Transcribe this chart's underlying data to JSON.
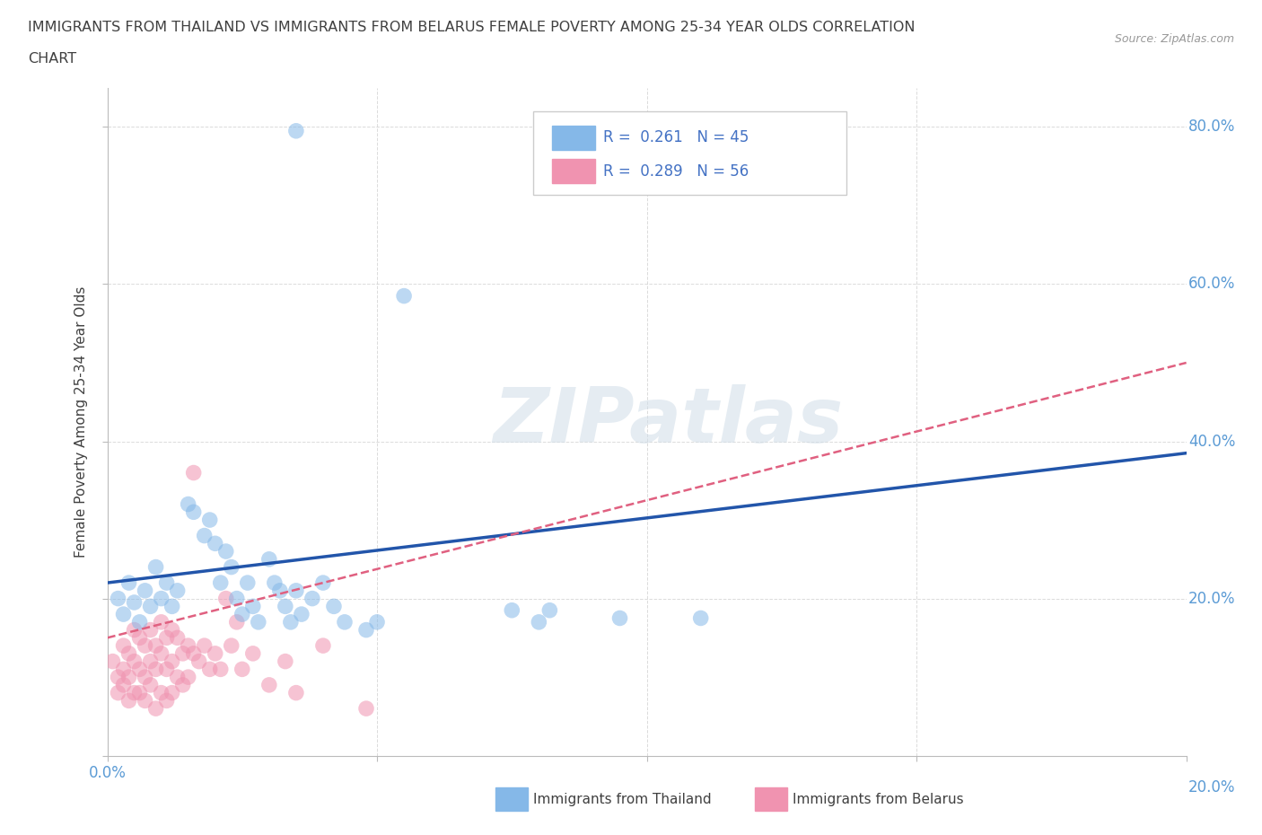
{
  "title_line1": "IMMIGRANTS FROM THAILAND VS IMMIGRANTS FROM BELARUS FEMALE POVERTY AMONG 25-34 YEAR OLDS CORRELATION",
  "title_line2": "CHART",
  "source": "Source: ZipAtlas.com",
  "ylabel": "Female Poverty Among 25-34 Year Olds",
  "xlim": [
    0.0,
    0.2
  ],
  "ylim": [
    0.0,
    0.85
  ],
  "watermark": "ZIPatlas",
  "thailand_color": "#85b8e8",
  "belarus_color": "#f093b0",
  "title_color": "#404040",
  "source_color": "#999999",
  "tick_label_color": "#5b9bd5",
  "trend_thailand_color": "#2255aa",
  "trend_belarus_color": "#e06080",
  "grid_color": "#cccccc",
  "background_color": "#ffffff",
  "trend_thailand_y0": 0.22,
  "trend_thailand_y1": 0.385,
  "trend_belarus_y0": 0.15,
  "trend_belarus_y1": 0.5,
  "thailand_scatter": [
    [
      0.002,
      0.2
    ],
    [
      0.003,
      0.18
    ],
    [
      0.004,
      0.22
    ],
    [
      0.005,
      0.195
    ],
    [
      0.006,
      0.17
    ],
    [
      0.007,
      0.21
    ],
    [
      0.008,
      0.19
    ],
    [
      0.009,
      0.24
    ],
    [
      0.01,
      0.2
    ],
    [
      0.011,
      0.22
    ],
    [
      0.012,
      0.19
    ],
    [
      0.013,
      0.21
    ],
    [
      0.015,
      0.32
    ],
    [
      0.016,
      0.31
    ],
    [
      0.018,
      0.28
    ],
    [
      0.019,
      0.3
    ],
    [
      0.02,
      0.27
    ],
    [
      0.021,
      0.22
    ],
    [
      0.022,
      0.26
    ],
    [
      0.023,
      0.24
    ],
    [
      0.024,
      0.2
    ],
    [
      0.025,
      0.18
    ],
    [
      0.026,
      0.22
    ],
    [
      0.027,
      0.19
    ],
    [
      0.028,
      0.17
    ],
    [
      0.03,
      0.25
    ],
    [
      0.031,
      0.22
    ],
    [
      0.032,
      0.21
    ],
    [
      0.033,
      0.19
    ],
    [
      0.034,
      0.17
    ],
    [
      0.035,
      0.21
    ],
    [
      0.036,
      0.18
    ],
    [
      0.038,
      0.2
    ],
    [
      0.04,
      0.22
    ],
    [
      0.042,
      0.19
    ],
    [
      0.044,
      0.17
    ],
    [
      0.048,
      0.16
    ],
    [
      0.05,
      0.17
    ],
    [
      0.055,
      0.585
    ],
    [
      0.075,
      0.185
    ],
    [
      0.08,
      0.17
    ],
    [
      0.082,
      0.185
    ],
    [
      0.095,
      0.175
    ],
    [
      0.11,
      0.175
    ],
    [
      0.035,
      0.795
    ]
  ],
  "belarus_scatter": [
    [
      0.001,
      0.12
    ],
    [
      0.002,
      0.1
    ],
    [
      0.002,
      0.08
    ],
    [
      0.003,
      0.14
    ],
    [
      0.003,
      0.11
    ],
    [
      0.003,
      0.09
    ],
    [
      0.004,
      0.13
    ],
    [
      0.004,
      0.1
    ],
    [
      0.004,
      0.07
    ],
    [
      0.005,
      0.16
    ],
    [
      0.005,
      0.12
    ],
    [
      0.005,
      0.08
    ],
    [
      0.006,
      0.15
    ],
    [
      0.006,
      0.11
    ],
    [
      0.006,
      0.08
    ],
    [
      0.007,
      0.14
    ],
    [
      0.007,
      0.1
    ],
    [
      0.007,
      0.07
    ],
    [
      0.008,
      0.16
    ],
    [
      0.008,
      0.12
    ],
    [
      0.008,
      0.09
    ],
    [
      0.009,
      0.14
    ],
    [
      0.009,
      0.11
    ],
    [
      0.009,
      0.06
    ],
    [
      0.01,
      0.17
    ],
    [
      0.01,
      0.13
    ],
    [
      0.01,
      0.08
    ],
    [
      0.011,
      0.15
    ],
    [
      0.011,
      0.11
    ],
    [
      0.011,
      0.07
    ],
    [
      0.012,
      0.16
    ],
    [
      0.012,
      0.12
    ],
    [
      0.012,
      0.08
    ],
    [
      0.013,
      0.15
    ],
    [
      0.013,
      0.1
    ],
    [
      0.014,
      0.13
    ],
    [
      0.014,
      0.09
    ],
    [
      0.015,
      0.14
    ],
    [
      0.015,
      0.1
    ],
    [
      0.016,
      0.36
    ],
    [
      0.016,
      0.13
    ],
    [
      0.017,
      0.12
    ],
    [
      0.018,
      0.14
    ],
    [
      0.019,
      0.11
    ],
    [
      0.02,
      0.13
    ],
    [
      0.021,
      0.11
    ],
    [
      0.022,
      0.2
    ],
    [
      0.023,
      0.14
    ],
    [
      0.024,
      0.17
    ],
    [
      0.025,
      0.11
    ],
    [
      0.027,
      0.13
    ],
    [
      0.03,
      0.09
    ],
    [
      0.033,
      0.12
    ],
    [
      0.035,
      0.08
    ],
    [
      0.04,
      0.14
    ],
    [
      0.048,
      0.06
    ]
  ]
}
